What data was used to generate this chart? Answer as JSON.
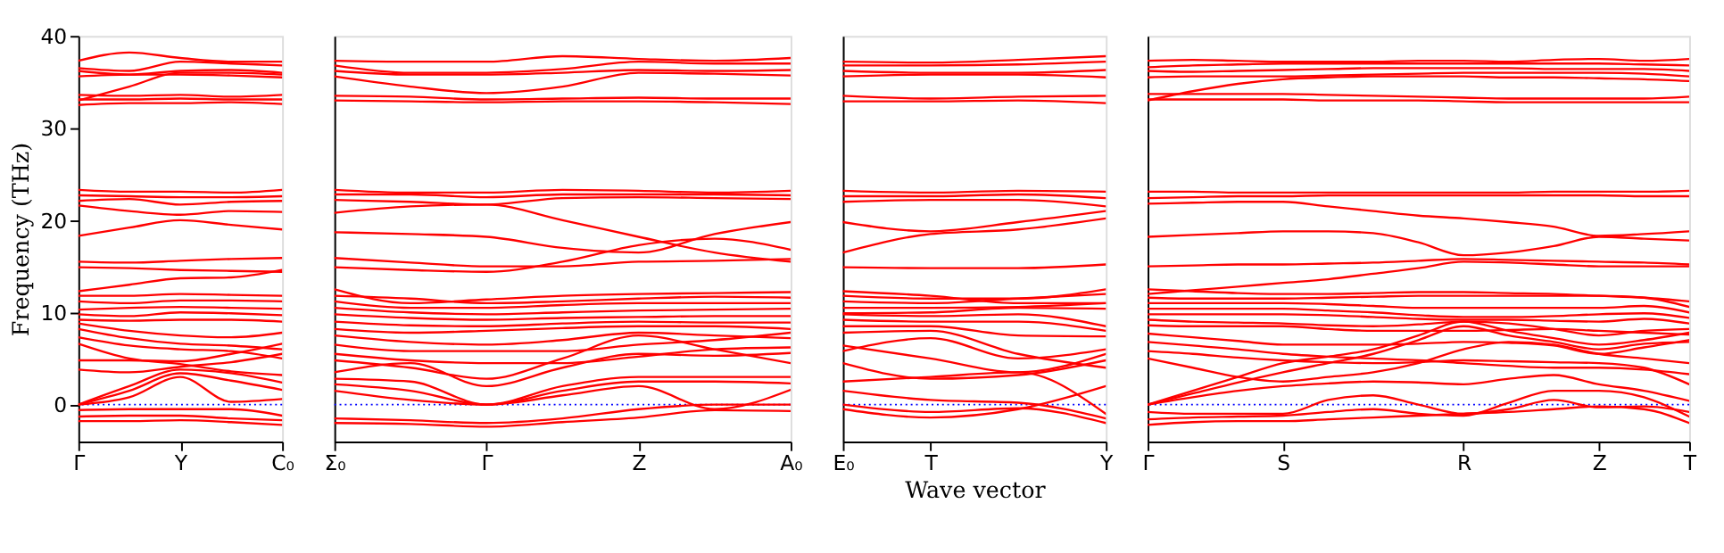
{
  "chart_data": [
    {
      "type": "line",
      "ylabel": "Frequency (THz)",
      "categories": [
        "Γ",
        null,
        "Y",
        null,
        "C₀"
      ],
      "ylim": [
        -4,
        40
      ],
      "yticks": [
        0,
        10,
        20,
        30,
        40
      ],
      "grid": false,
      "legend": false,
      "line_style": "solid",
      "ref_lines": [
        {
          "axis": "y",
          "value": 0,
          "color": "#0000ff",
          "line_style": "dotted"
        }
      ],
      "series": [
        {
          "color": "#ff0000",
          "values": [
            37.3,
            38.2,
            37.6,
            37.2,
            37.2
          ]
        },
        {
          "color": "#ff0000",
          "values": [
            36.5,
            36.2,
            37.2,
            37.0,
            36.8
          ]
        },
        {
          "color": "#ff0000",
          "values": [
            36.2,
            35.8,
            36.2,
            36.3,
            36.0
          ]
        },
        {
          "color": "#ff0000",
          "values": [
            35.6,
            35.8,
            35.8,
            35.7,
            35.5
          ]
        },
        {
          "color": "#ff0000",
          "values": [
            33.0,
            34.5,
            36.0,
            36.0,
            35.8
          ]
        },
        {
          "color": "#ff0000",
          "values": [
            33.6,
            33.5,
            33.6,
            33.4,
            33.6
          ]
        },
        {
          "color": "#ff0000",
          "values": [
            33.1,
            33.1,
            33.2,
            33.1,
            33.1
          ]
        },
        {
          "color": "#ff0000",
          "values": [
            32.5,
            32.7,
            32.7,
            32.8,
            32.6
          ]
        },
        {
          "color": "#ff0000",
          "values": [
            23.3,
            23.1,
            23.1,
            23.0,
            23.3
          ]
        },
        {
          "color": "#ff0000",
          "values": [
            22.7,
            22.6,
            22.5,
            22.5,
            22.6
          ]
        },
        {
          "color": "#ff0000",
          "values": [
            22.1,
            22.3,
            21.7,
            22.0,
            22.1
          ]
        },
        {
          "color": "#ff0000",
          "values": [
            21.6,
            21.0,
            20.6,
            21.0,
            20.9
          ]
        },
        {
          "color": "#ff0000",
          "values": [
            18.3,
            19.2,
            20.0,
            19.5,
            19.0
          ]
        },
        {
          "color": "#ff0000",
          "values": [
            15.5,
            15.4,
            15.6,
            15.8,
            15.9
          ]
        },
        {
          "color": "#ff0000",
          "values": [
            14.9,
            14.8,
            14.6,
            14.5,
            14.4
          ]
        },
        {
          "color": "#ff0000",
          "values": [
            12.3,
            13.0,
            13.7,
            13.8,
            14.6
          ]
        },
        {
          "color": "#ff0000",
          "values": [
            11.8,
            11.8,
            12.0,
            11.9,
            11.8
          ]
        },
        {
          "color": "#ff0000",
          "values": [
            11.2,
            11.0,
            11.3,
            11.3,
            11.2
          ]
        },
        {
          "color": "#ff0000",
          "values": [
            10.3,
            10.5,
            10.6,
            10.5,
            10.4
          ]
        },
        {
          "color": "#ff0000",
          "values": [
            9.8,
            9.6,
            10.0,
            9.9,
            9.7
          ]
        },
        {
          "color": "#ff0000",
          "values": [
            9.2,
            9.1,
            9.2,
            9.2,
            9.0
          ]
        },
        {
          "color": "#ff0000",
          "values": [
            8.8,
            8.0,
            7.5,
            7.3,
            7.8
          ]
        },
        {
          "color": "#ff0000",
          "values": [
            8.2,
            7.2,
            6.6,
            6.4,
            6.0
          ]
        },
        {
          "color": "#ff0000",
          "values": [
            7.3,
            6.4,
            6.0,
            5.8,
            5.0
          ]
        },
        {
          "color": "#ff0000",
          "values": [
            6.6,
            5.0,
            4.4,
            3.6,
            3.2
          ]
        },
        {
          "color": "#ff0000",
          "values": [
            4.8,
            4.8,
            4.7,
            5.5,
            6.6
          ]
        },
        {
          "color": "#ff0000",
          "values": [
            3.8,
            3.5,
            4.1,
            4.6,
            5.5
          ]
        },
        {
          "color": "#ff0000",
          "values": [
            0,
            2.0,
            3.8,
            3.4,
            2.4
          ]
        },
        {
          "color": "#ff0000",
          "values": [
            0,
            1.5,
            3.4,
            2.6,
            1.6
          ]
        },
        {
          "color": "#ff0000",
          "values": [
            0,
            0.8,
            3.0,
            0.3,
            0.6
          ]
        },
        {
          "color": "#ff0000",
          "values": [
            -0.6,
            -0.5,
            -0.5,
            -0.5,
            -1.2
          ]
        },
        {
          "color": "#ff0000",
          "values": [
            -1.3,
            -1.2,
            -1.2,
            -1.5,
            -1.7
          ]
        },
        {
          "color": "#ff0000",
          "values": [
            -1.8,
            -1.8,
            -1.7,
            -1.9,
            -2.2
          ]
        }
      ]
    },
    {
      "type": "line",
      "categories": [
        "Σ₀",
        null,
        "Γ",
        null,
        "Z",
        null,
        "A₀"
      ],
      "ylim": [
        -4,
        40
      ],
      "tick_labels": "x",
      "grid": false,
      "legend": false,
      "line_style": "solid",
      "ref_lines": [
        {
          "axis": "y",
          "value": 0,
          "color": "#0000ff",
          "line_style": "dotted"
        }
      ],
      "series": [
        {
          "color": "#ff0000",
          "values": [
            37.3,
            37.2,
            37.2,
            37.8,
            37.5,
            37.3,
            37.6
          ]
        },
        {
          "color": "#ff0000",
          "values": [
            36.8,
            36.0,
            36.0,
            36.4,
            37.2,
            37.0,
            37.0
          ]
        },
        {
          "color": "#ff0000",
          "values": [
            36.2,
            35.8,
            35.8,
            36.0,
            36.3,
            36.2,
            36.3
          ]
        },
        {
          "color": "#ff0000",
          "values": [
            35.6,
            34.5,
            33.8,
            34.5,
            36.0,
            35.9,
            35.7
          ]
        },
        {
          "color": "#ff0000",
          "values": [
            33.5,
            33.4,
            33.1,
            33.2,
            33.3,
            33.2,
            33.2
          ]
        },
        {
          "color": "#ff0000",
          "values": [
            33.0,
            32.9,
            32.8,
            32.9,
            32.9,
            32.8,
            32.6
          ]
        },
        {
          "color": "#ff0000",
          "values": [
            23.3,
            23.0,
            23.0,
            23.3,
            23.2,
            23.0,
            23.2
          ]
        },
        {
          "color": "#ff0000",
          "values": [
            22.8,
            22.8,
            22.5,
            22.8,
            22.8,
            22.8,
            22.7
          ]
        },
        {
          "color": "#ff0000",
          "values": [
            22.2,
            22.0,
            21.7,
            22.4,
            22.5,
            22.4,
            22.3
          ]
        },
        {
          "color": "#ff0000",
          "values": [
            20.8,
            21.5,
            21.7,
            20.0,
            18.2,
            16.5,
            15.5
          ]
        },
        {
          "color": "#ff0000",
          "values": [
            18.7,
            18.5,
            18.2,
            17.0,
            16.5,
            18.5,
            19.8
          ]
        },
        {
          "color": "#ff0000",
          "values": [
            15.9,
            15.4,
            15.0,
            15.0,
            15.5,
            15.6,
            15.8
          ]
        },
        {
          "color": "#ff0000",
          "values": [
            14.9,
            14.6,
            14.4,
            15.5,
            17.3,
            18.0,
            16.8
          ]
        },
        {
          "color": "#ff0000",
          "values": [
            12.5,
            11.0,
            11.4,
            11.8,
            12.0,
            12.1,
            12.2
          ]
        },
        {
          "color": "#ff0000",
          "values": [
            11.8,
            11.5,
            11.0,
            11.2,
            11.5,
            11.7,
            11.6
          ]
        },
        {
          "color": "#ff0000",
          "values": [
            11.2,
            10.5,
            10.5,
            10.8,
            11.0,
            11.0,
            11.0
          ]
        },
        {
          "color": "#ff0000",
          "values": [
            10.5,
            10.0,
            9.8,
            10.0,
            10.2,
            10.3,
            10.4
          ]
        },
        {
          "color": "#ff0000",
          "values": [
            9.8,
            9.4,
            9.2,
            9.4,
            9.5,
            9.6,
            9.6
          ]
        },
        {
          "color": "#ff0000",
          "values": [
            9.0,
            8.6,
            8.5,
            8.8,
            9.0,
            8.9,
            8.9
          ]
        },
        {
          "color": "#ff0000",
          "values": [
            8.2,
            7.8,
            8.0,
            8.3,
            8.5,
            8.5,
            8.2
          ]
        },
        {
          "color": "#ff0000",
          "values": [
            7.5,
            6.8,
            6.5,
            7.0,
            7.8,
            7.5,
            7.2
          ]
        },
        {
          "color": "#ff0000",
          "values": [
            6.5,
            5.8,
            5.8,
            5.8,
            6.5,
            7.0,
            7.8
          ]
        },
        {
          "color": "#ff0000",
          "values": [
            5.5,
            4.8,
            4.5,
            4.5,
            5.2,
            6.0,
            6.2
          ]
        },
        {
          "color": "#ff0000",
          "values": [
            4.8,
            4.0,
            2.8,
            5.0,
            7.5,
            6.0,
            4.5
          ]
        },
        {
          "color": "#ff0000",
          "values": [
            3.5,
            4.5,
            2.0,
            4.0,
            5.5,
            5.3,
            5.6
          ]
        },
        {
          "color": "#ff0000",
          "values": [
            2.8,
            2.5,
            0,
            2.0,
            3.0,
            3.0,
            3.0
          ]
        },
        {
          "color": "#ff0000",
          "values": [
            2.2,
            1.5,
            0,
            1.5,
            2.5,
            2.5,
            2.3
          ]
        },
        {
          "color": "#ff0000",
          "values": [
            1.5,
            0.5,
            0,
            1.0,
            2.0,
            -0.5,
            1.6
          ]
        },
        {
          "color": "#ff0000",
          "values": [
            -1.5,
            -1.7,
            -2.0,
            -1.5,
            -0.5,
            0,
            0
          ]
        },
        {
          "color": "#ff0000",
          "values": [
            -2.0,
            -2.1,
            -2.4,
            -1.9,
            -1.4,
            -0.6,
            -0.7
          ]
        }
      ]
    },
    {
      "type": "line",
      "xlabel": "Wave vector",
      "categories": [
        "E₀",
        "T",
        null,
        "Y"
      ],
      "ylim": [
        -4,
        40
      ],
      "tick_labels": "x",
      "grid": false,
      "legend": false,
      "line_style": "solid",
      "ref_lines": [
        {
          "axis": "y",
          "value": 0,
          "color": "#0000ff",
          "line_style": "dotted"
        }
      ],
      "series": [
        {
          "color": "#ff0000",
          "values": [
            37.2,
            37.1,
            37.4,
            37.8
          ]
        },
        {
          "color": "#ff0000",
          "values": [
            36.8,
            36.8,
            36.9,
            37.2
          ]
        },
        {
          "color": "#ff0000",
          "values": [
            36.2,
            36.0,
            36.0,
            36.3
          ]
        },
        {
          "color": "#ff0000",
          "values": [
            35.6,
            35.8,
            35.8,
            35.5
          ]
        },
        {
          "color": "#ff0000",
          "values": [
            33.5,
            33.2,
            33.4,
            33.5
          ]
        },
        {
          "color": "#ff0000",
          "values": [
            32.9,
            32.9,
            33.0,
            32.7
          ]
        },
        {
          "color": "#ff0000",
          "values": [
            23.2,
            23.0,
            23.2,
            23.1
          ]
        },
        {
          "color": "#ff0000",
          "values": [
            22.6,
            22.6,
            22.8,
            22.4
          ]
        },
        {
          "color": "#ff0000",
          "values": [
            22.0,
            22.2,
            22.2,
            21.5
          ]
        },
        {
          "color": "#ff0000",
          "values": [
            19.8,
            18.8,
            19.8,
            21.0
          ]
        },
        {
          "color": "#ff0000",
          "values": [
            16.5,
            18.5,
            19.0,
            20.2
          ]
        },
        {
          "color": "#ff0000",
          "values": [
            14.9,
            14.8,
            14.8,
            15.2
          ]
        },
        {
          "color": "#ff0000",
          "values": [
            12.3,
            11.8,
            11.0,
            11.0
          ]
        },
        {
          "color": "#ff0000",
          "values": [
            11.8,
            11.5,
            11.5,
            12.5
          ]
        },
        {
          "color": "#ff0000",
          "values": [
            11.2,
            11.0,
            11.5,
            12.0
          ]
        },
        {
          "color": "#ff0000",
          "values": [
            10.5,
            10.5,
            10.6,
            11.0
          ]
        },
        {
          "color": "#ff0000",
          "values": [
            9.9,
            10.0,
            10.5,
            10.4
          ]
        },
        {
          "color": "#ff0000",
          "values": [
            9.8,
            9.6,
            9.8,
            8.5
          ]
        },
        {
          "color": "#ff0000",
          "values": [
            9.2,
            9.0,
            9.0,
            8.0
          ]
        },
        {
          "color": "#ff0000",
          "values": [
            8.5,
            8.5,
            7.5,
            7.4
          ]
        },
        {
          "color": "#ff0000",
          "values": [
            7.8,
            8.0,
            5.5,
            4.0
          ]
        },
        {
          "color": "#ff0000",
          "values": [
            6.4,
            5.0,
            3.5,
            5.5
          ]
        },
        {
          "color": "#ff0000",
          "values": [
            5.8,
            7.2,
            5.0,
            6.0
          ]
        },
        {
          "color": "#ff0000",
          "values": [
            4.5,
            2.8,
            3.2,
            4.8
          ]
        },
        {
          "color": "#ff0000",
          "values": [
            2.5,
            3.0,
            3.5,
            -1.0
          ]
        },
        {
          "color": "#ff0000",
          "values": [
            1.5,
            0.5,
            0.2,
            -1.5
          ]
        },
        {
          "color": "#ff0000",
          "values": [
            0,
            -0.8,
            -0.4,
            -2.0
          ]
        },
        {
          "color": "#ff0000",
          "values": [
            -0.5,
            -1.4,
            -0.5,
            2.0
          ]
        }
      ]
    },
    {
      "type": "line",
      "categories": [
        "Γ",
        null,
        null,
        "S",
        null,
        null,
        null,
        "R",
        null,
        null,
        "Z",
        null,
        "T"
      ],
      "ylim": [
        -4,
        40
      ],
      "tick_labels": "x",
      "grid": false,
      "legend": false,
      "line_style": "solid",
      "ref_lines": [
        {
          "axis": "y",
          "value": 0,
          "color": "#0000ff",
          "line_style": "dotted"
        }
      ],
      "series": [
        {
          "color": "#ff0000",
          "values": [
            37.3,
            37.4,
            37.3,
            37.2,
            37.2,
            37.2,
            37.3,
            37.3,
            37.2,
            37.4,
            37.5,
            37.3,
            37.5
          ]
        },
        {
          "color": "#ff0000",
          "values": [
            36.6,
            36.8,
            36.9,
            37.0,
            37.0,
            37.0,
            37.0,
            37.0,
            37.0,
            37.0,
            37.0,
            36.9,
            36.8
          ]
        },
        {
          "color": "#ff0000",
          "values": [
            36.2,
            36.1,
            36.2,
            36.3,
            36.4,
            36.5,
            36.5,
            36.5,
            36.5,
            36.4,
            36.4,
            36.4,
            36.2
          ]
        },
        {
          "color": "#ff0000",
          "values": [
            35.5,
            35.6,
            35.6,
            35.6,
            35.7,
            35.8,
            35.9,
            36.0,
            36.0,
            36.0,
            36.0,
            35.9,
            35.6
          ]
        },
        {
          "color": "#ff0000",
          "values": [
            33.0,
            34.0,
            34.8,
            35.3,
            35.5,
            35.6,
            35.6,
            35.6,
            35.5,
            35.5,
            35.4,
            35.3,
            35.1
          ]
        },
        {
          "color": "#ff0000",
          "values": [
            33.7,
            33.7,
            33.7,
            33.7,
            33.6,
            33.5,
            33.4,
            33.3,
            33.2,
            33.2,
            33.2,
            33.2,
            33.4
          ]
        },
        {
          "color": "#ff0000",
          "values": [
            33.1,
            33.1,
            33.1,
            33.1,
            33.0,
            33.0,
            33.0,
            32.9,
            32.8,
            32.8,
            32.8,
            32.8,
            32.8
          ]
        },
        {
          "color": "#ff0000",
          "values": [
            23.1,
            23.1,
            23.0,
            23.0,
            23.0,
            23.0,
            23.0,
            23.0,
            23.0,
            23.1,
            23.1,
            23.1,
            23.2
          ]
        },
        {
          "color": "#ff0000",
          "values": [
            22.4,
            22.5,
            22.6,
            22.6,
            22.7,
            22.7,
            22.7,
            22.7,
            22.7,
            22.7,
            22.7,
            22.6,
            22.6
          ]
        },
        {
          "color": "#ff0000",
          "values": [
            21.8,
            21.9,
            22.0,
            22.0,
            21.5,
            21.0,
            20.5,
            20.2,
            19.8,
            19.3,
            18.3,
            18.5,
            18.8
          ]
        },
        {
          "color": "#ff0000",
          "values": [
            18.2,
            18.4,
            18.6,
            18.8,
            18.8,
            18.6,
            17.6,
            16.2,
            16.5,
            17.2,
            18.2,
            18.0,
            17.8
          ]
        },
        {
          "color": "#ff0000",
          "values": [
            15.0,
            15.1,
            15.2,
            15.2,
            15.3,
            15.4,
            15.6,
            15.8,
            15.7,
            15.6,
            15.5,
            15.4,
            15.2
          ]
        },
        {
          "color": "#ff0000",
          "values": [
            12.0,
            12.4,
            12.8,
            13.2,
            13.6,
            14.2,
            14.8,
            15.5,
            15.4,
            15.2,
            15.0,
            15.0,
            15.0
          ]
        },
        {
          "color": "#ff0000",
          "values": [
            12.5,
            12.3,
            12.1,
            12.0,
            12.0,
            12.1,
            12.2,
            12.2,
            12.1,
            12.0,
            11.8,
            11.6,
            11.2
          ]
        },
        {
          "color": "#ff0000",
          "values": [
            11.6,
            11.5,
            11.5,
            11.5,
            11.6,
            11.7,
            11.8,
            11.8,
            11.8,
            11.8,
            11.8,
            11.6,
            10.6
          ]
        },
        {
          "color": "#ff0000",
          "values": [
            11.0,
            11.0,
            11.0,
            11.0,
            10.9,
            10.7,
            10.5,
            10.5,
            10.5,
            10.5,
            10.5,
            10.7,
            10.0
          ]
        },
        {
          "color": "#ff0000",
          "values": [
            10.4,
            10.4,
            10.4,
            10.4,
            10.2,
            10.0,
            9.7,
            9.5,
            9.5,
            9.6,
            9.8,
            9.9,
            9.4
          ]
        },
        {
          "color": "#ff0000",
          "values": [
            9.8,
            9.8,
            9.8,
            9.8,
            9.7,
            9.5,
            9.3,
            9.2,
            9.2,
            9.1,
            9.0,
            9.3,
            8.8
          ]
        },
        {
          "color": "#ff0000",
          "values": [
            9.2,
            9.0,
            8.9,
            8.8,
            8.6,
            8.5,
            8.7,
            9.0,
            8.8,
            8.2,
            7.5,
            8.0,
            8.2
          ]
        },
        {
          "color": "#ff0000",
          "values": [
            8.6,
            8.5,
            8.5,
            8.5,
            8.2,
            8.0,
            8.0,
            8.0,
            8.1,
            8.2,
            8.0,
            7.8,
            7.6
          ]
        },
        {
          "color": "#ff0000",
          "values": [
            7.7,
            7.3,
            6.9,
            6.5,
            6.5,
            6.5,
            6.6,
            6.8,
            6.7,
            6.4,
            5.5,
            6.2,
            7.0
          ]
        },
        {
          "color": "#ff0000",
          "values": [
            6.8,
            6.4,
            6.0,
            5.5,
            5.2,
            5.0,
            4.8,
            4.5,
            4.2,
            4.0,
            4.0,
            3.8,
            3.3
          ]
        },
        {
          "color": "#ff0000",
          "values": [
            5.8,
            5.5,
            5.1,
            4.8,
            4.6,
            4.5,
            4.6,
            4.8,
            4.7,
            4.6,
            4.5,
            4.0,
            2.2
          ]
        },
        {
          "color": "#ff0000",
          "values": [
            5.0,
            4.0,
            3.0,
            2.5,
            3.0,
            3.5,
            4.5,
            6.0,
            6.8,
            6.5,
            5.5,
            5.0,
            4.5
          ]
        },
        {
          "color": "#ff0000",
          "values": [
            0,
            1.5,
            3.0,
            4.5,
            5.2,
            6.0,
            7.5,
            9.0,
            8.0,
            7.2,
            6.5,
            7.0,
            7.8
          ]
        },
        {
          "color": "#ff0000",
          "values": [
            0,
            1.2,
            2.4,
            3.5,
            4.5,
            5.5,
            7.0,
            8.5,
            7.5,
            6.8,
            6.0,
            6.6,
            6.8
          ]
        },
        {
          "color": "#ff0000",
          "values": [
            0,
            0.8,
            1.5,
            2.0,
            2.3,
            2.5,
            2.4,
            2.2,
            2.8,
            3.2,
            2.2,
            1.5,
            0.4
          ]
        },
        {
          "color": "#ff0000",
          "values": [
            -0.8,
            -1.0,
            -1.0,
            -1.0,
            0.5,
            1.0,
            0,
            -1.0,
            -0.5,
            0.5,
            -0.3,
            -0.2,
            -0.8
          ]
        },
        {
          "color": "#ff0000",
          "values": [
            -1.6,
            -1.4,
            -1.3,
            -1.2,
            -0.8,
            -0.5,
            -1.0,
            -1.2,
            0.2,
            1.5,
            1.5,
            0.8,
            -1.3
          ]
        },
        {
          "color": "#ff0000",
          "values": [
            -2.2,
            -1.9,
            -1.8,
            -1.8,
            -1.6,
            -1.4,
            -1.2,
            -1.0,
            -0.8,
            -0.5,
            -0.2,
            -0.5,
            -2.0
          ]
        }
      ]
    }
  ]
}
